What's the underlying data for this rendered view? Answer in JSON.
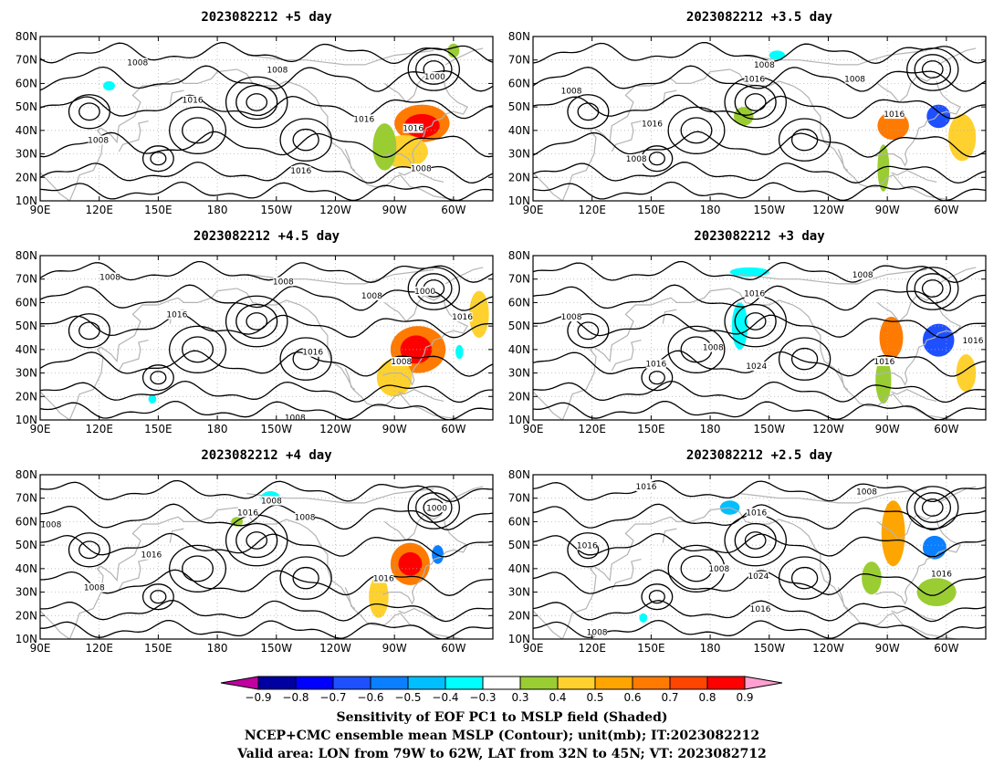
{
  "panels": [
    {
      "title": "2023082212  +5 day",
      "contour_labels": [
        {
          "text": "1008",
          "lon": 139.5,
          "lat": 68.5
        },
        {
          "text": "1008",
          "lon": 210.5,
          "lat": 65.5
        },
        {
          "text": "1000",
          "lon": 290.5,
          "lat": 62.5
        },
        {
          "text": "1016",
          "lon": 167.5,
          "lat": 52.5
        },
        {
          "text": "1016",
          "lon": 254.5,
          "lat": 44.5
        },
        {
          "text": "1016",
          "lon": 279.5,
          "lat": 40.5
        },
        {
          "text": "1008",
          "lon": 119.5,
          "lat": 35.5
        },
        {
          "text": "1016",
          "lon": 222.5,
          "lat": 22.5
        },
        {
          "text": "1008",
          "lon": 283.5,
          "lat": 23.5
        }
      ],
      "shading": [
        {
          "lon": 284,
          "lat": 43,
          "rx": 14,
          "ry": 8,
          "v": 0.6
        },
        {
          "lon": 284,
          "lat": 42,
          "rx": 9,
          "ry": 5,
          "v": 0.8
        },
        {
          "lon": 275,
          "lat": 31,
          "rx": 12,
          "ry": 7,
          "v": 0.4
        },
        {
          "lon": 265,
          "lat": 33,
          "rx": 6,
          "ry": 10,
          "v": 0.3
        },
        {
          "lon": 300,
          "lat": 74,
          "rx": 3,
          "ry": 3,
          "v": 0.3
        },
        {
          "lon": 125,
          "lat": 59,
          "rx": 3,
          "ry": 2,
          "v": -0.3
        }
      ]
    },
    {
      "title": "2023082212  +3.5 day",
      "contour_labels": [
        {
          "text": "1008",
          "lon": 207.5,
          "lat": 67.5
        },
        {
          "text": "1016",
          "lon": 202.5,
          "lat": 61.5
        },
        {
          "text": "1008",
          "lon": 253.5,
          "lat": 61.5
        },
        {
          "text": "1008",
          "lon": 109.5,
          "lat": 56.5
        },
        {
          "text": "1016",
          "lon": 273.5,
          "lat": 46.5
        },
        {
          "text": "1016",
          "lon": 150.5,
          "lat": 42.5
        },
        {
          "text": "1008",
          "lon": 142.5,
          "lat": 27.5
        }
      ],
      "shading": [
        {
          "lon": 273,
          "lat": 42,
          "rx": 8,
          "ry": 6,
          "v": 0.6
        },
        {
          "lon": 296,
          "lat": 46,
          "rx": 6,
          "ry": 5,
          "v": -0.6
        },
        {
          "lon": 308,
          "lat": 37,
          "rx": 7,
          "ry": 10,
          "v": 0.4
        },
        {
          "lon": 268,
          "lat": 24,
          "rx": 3,
          "ry": 10,
          "v": 0.3
        },
        {
          "lon": 197,
          "lat": 46,
          "rx": 5,
          "ry": 4,
          "v": 0.3
        },
        {
          "lon": 214,
          "lat": 72,
          "rx": 4,
          "ry": 2,
          "v": -0.3
        }
      ]
    },
    {
      "title": "2023082212  +4.5 day",
      "contour_labels": [
        {
          "text": "1008",
          "lon": 125.5,
          "lat": 70.5
        },
        {
          "text": "1008",
          "lon": 213.5,
          "lat": 68.5
        },
        {
          "text": "1008",
          "lon": 258.5,
          "lat": 62.5
        },
        {
          "text": "1000",
          "lon": 285.5,
          "lat": 64.5
        },
        {
          "text": "1016",
          "lon": 159.5,
          "lat": 54.5
        },
        {
          "text": "1016",
          "lon": 304.5,
          "lat": 53.5
        },
        {
          "text": "1016",
          "lon": 228.5,
          "lat": 38.5
        },
        {
          "text": "1008",
          "lon": 273.5,
          "lat": 34.5
        },
        {
          "text": "1008",
          "lon": 219.5,
          "lat": 10.5
        }
      ],
      "shading": [
        {
          "lon": 282,
          "lat": 40,
          "rx": 14,
          "ry": 10,
          "v": 0.6
        },
        {
          "lon": 281,
          "lat": 40,
          "rx": 8,
          "ry": 6,
          "v": 0.8
        },
        {
          "lon": 270,
          "lat": 28,
          "rx": 9,
          "ry": 8,
          "v": 0.4
        },
        {
          "lon": 313,
          "lat": 55,
          "rx": 5,
          "ry": 10,
          "v": 0.4
        },
        {
          "lon": 303,
          "lat": 39,
          "rx": 2,
          "ry": 3,
          "v": -0.3
        },
        {
          "lon": 147,
          "lat": 19,
          "rx": 2,
          "ry": 2,
          "v": -0.3
        }
      ]
    },
    {
      "title": "2023082212  +3 day",
      "contour_labels": [
        {
          "text": "1008",
          "lon": 257.5,
          "lat": 71.5
        },
        {
          "text": "1016",
          "lon": 202.5,
          "lat": 63.5
        },
        {
          "text": "1008",
          "lon": 109.5,
          "lat": 53.5
        },
        {
          "text": "1008",
          "lon": 181.5,
          "lat": 40.5
        },
        {
          "text": "1016",
          "lon": 313.5,
          "lat": 43.5
        },
        {
          "text": "1016",
          "lon": 152.5,
          "lat": 33.5
        },
        {
          "text": "1024",
          "lon": 203.5,
          "lat": 32.5
        },
        {
          "text": "1016",
          "lon": 268.5,
          "lat": 34.5
        }
      ],
      "shading": [
        {
          "lon": 272,
          "lat": 45,
          "rx": 6,
          "ry": 9,
          "v": 0.6
        },
        {
          "lon": 296,
          "lat": 44,
          "rx": 8,
          "ry": 7,
          "v": -0.6
        },
        {
          "lon": 195,
          "lat": 50,
          "rx": 4,
          "ry": 10,
          "v": -0.3
        },
        {
          "lon": 200,
          "lat": 73,
          "rx": 10,
          "ry": 2,
          "v": -0.3
        },
        {
          "lon": 268,
          "lat": 27,
          "rx": 4,
          "ry": 10,
          "v": 0.3
        },
        {
          "lon": 310,
          "lat": 30,
          "rx": 5,
          "ry": 8,
          "v": 0.4
        }
      ]
    },
    {
      "title": "2023082212  +4 day",
      "contour_labels": [
        {
          "text": "1008",
          "lon": 207.5,
          "lat": 68.5
        },
        {
          "text": "1016",
          "lon": 195.5,
          "lat": 63.5
        },
        {
          "text": "1008",
          "lon": 224.5,
          "lat": 61.5
        },
        {
          "text": "1000",
          "lon": 291.5,
          "lat": 65.5
        },
        {
          "text": "1008",
          "lon": 95.5,
          "lat": 58.5
        },
        {
          "text": "1016",
          "lon": 146.5,
          "lat": 45.5
        },
        {
          "text": "1016",
          "lon": 264.5,
          "lat": 35.5
        },
        {
          "text": "1008",
          "lon": 117.5,
          "lat": 31.5
        }
      ],
      "shading": [
        {
          "lon": 278,
          "lat": 42,
          "rx": 10,
          "ry": 9,
          "v": 0.6
        },
        {
          "lon": 278,
          "lat": 42,
          "rx": 6,
          "ry": 5,
          "v": 0.8
        },
        {
          "lon": 292,
          "lat": 46,
          "rx": 3,
          "ry": 4,
          "v": -0.5
        },
        {
          "lon": 262,
          "lat": 28,
          "rx": 5,
          "ry": 9,
          "v": 0.4
        },
        {
          "lon": 207,
          "lat": 70,
          "rx": 5,
          "ry": 3,
          "v": -0.3
        },
        {
          "lon": 190,
          "lat": 60,
          "rx": 3,
          "ry": 2,
          "v": 0.3
        }
      ]
    },
    {
      "title": "2023082212  +2.5 day",
      "contour_labels": [
        {
          "text": "1016",
          "lon": 147.5,
          "lat": 74.5
        },
        {
          "text": "1008",
          "lon": 259.5,
          "lat": 72.5
        },
        {
          "text": "1016",
          "lon": 203.5,
          "lat": 63.5
        },
        {
          "text": "1016",
          "lon": 117.5,
          "lat": 49.5
        },
        {
          "text": "1008",
          "lon": 184.5,
          "lat": 39.5
        },
        {
          "text": "1024",
          "lon": 204.5,
          "lat": 36.5
        },
        {
          "text": "1016",
          "lon": 297.5,
          "lat": 37.5
        },
        {
          "text": "1016",
          "lon": 205.5,
          "lat": 22.5
        },
        {
          "text": "1008",
          "lon": 122.5,
          "lat": 12.5
        }
      ],
      "shading": [
        {
          "lon": 273,
          "lat": 55,
          "rx": 6,
          "ry": 14,
          "v": 0.5
        },
        {
          "lon": 294,
          "lat": 49,
          "rx": 6,
          "ry": 5,
          "v": -0.5
        },
        {
          "lon": 190,
          "lat": 66,
          "rx": 5,
          "ry": 3,
          "v": -0.4
        },
        {
          "lon": 262,
          "lat": 36,
          "rx": 5,
          "ry": 7,
          "v": 0.3
        },
        {
          "lon": 295,
          "lat": 30,
          "rx": 10,
          "ry": 6,
          "v": 0.3
        },
        {
          "lon": 146,
          "lat": 19,
          "rx": 2,
          "ry": 2,
          "v": -0.3
        }
      ]
    }
  ],
  "map": {
    "lon_range": [
      90,
      320
    ],
    "lat_range": [
      10,
      80
    ],
    "lon_ticks": [
      {
        "lon": 90,
        "label": "90E"
      },
      {
        "lon": 120,
        "label": "120E"
      },
      {
        "lon": 150,
        "label": "150E"
      },
      {
        "lon": 180,
        "label": "180"
      },
      {
        "lon": 210,
        "label": "150W"
      },
      {
        "lon": 240,
        "label": "120W"
      },
      {
        "lon": 270,
        "label": "90W"
      },
      {
        "lon": 300,
        "label": "60W"
      }
    ],
    "lat_ticks": [
      {
        "lat": 10,
        "label": "10N"
      },
      {
        "lat": 20,
        "label": "20N"
      },
      {
        "lat": 30,
        "label": "30N"
      },
      {
        "lat": 40,
        "label": "40N"
      },
      {
        "lat": 50,
        "label": "50N"
      },
      {
        "lat": 60,
        "label": "60N"
      },
      {
        "lat": 70,
        "label": "70N"
      },
      {
        "lat": 80,
        "label": "80N"
      }
    ],
    "coastline_color": "#b4b4b4",
    "contour_color": "#000000",
    "grid": true
  },
  "colorbar": {
    "labels": [
      "−0.9",
      "−0.8",
      "−0.7",
      "−0.6",
      "−0.5",
      "−0.4",
      "−0.3",
      "0.3",
      "0.4",
      "0.5",
      "0.6",
      "0.7",
      "0.8",
      "0.9"
    ],
    "colors": [
      "#0000a0",
      "#0000ff",
      "#1e50ff",
      "#0a7fff",
      "#00bfff",
      "#00ffff",
      "#ffffff",
      "#9acd32",
      "#ffd12f",
      "#ffa500",
      "#ff7a00",
      "#ff4500",
      "#ff0000"
    ],
    "low_color": "#c000a0",
    "high_color": "#ffa0d0"
  },
  "caption": [
    "Sensitivity of EOF PC1 to MSLP field (Shaded)",
    "NCEP+CMC ensemble mean MSLP (Contour); unit(mb); IT:2023082212",
    "Valid area: LON from 79W to 62W, LAT from 32N to 45N; VT: 2023082712"
  ]
}
